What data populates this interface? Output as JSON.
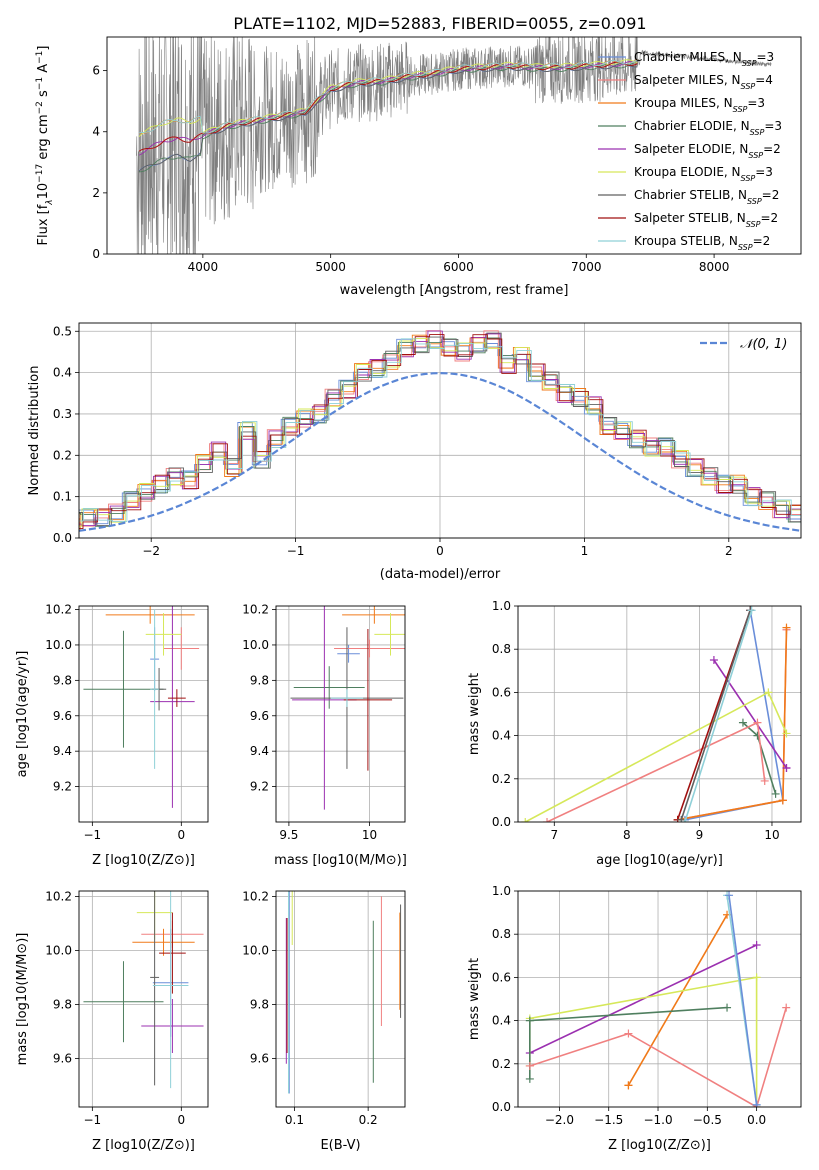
{
  "figure_title": "PLATE=1102, MJD=52883, FIBERID=0055, z=0.091",
  "colors": {
    "spectrum": "#7f7f7f",
    "models": [
      "#6a8ed9",
      "#f08080",
      "#f07a1a",
      "#4f7f5f",
      "#9b30b0",
      "#d6e85a",
      "#606060",
      "#a01010",
      "#8fd0d8"
    ],
    "normal": "#5a86d5",
    "grid": "#b0b0b0"
  },
  "chart_data": [
    {
      "id": "spectrum",
      "type": "line",
      "title": "PLATE=1102, MJD=52883, FIBERID=0055, z=0.091",
      "xlabel": "wavelength [Angstrom, rest frame]",
      "ylabel_parts": [
        "Flux [f",
        "λ",
        "10",
        "−17",
        " erg cm",
        "−2",
        " s",
        "−1",
        " A",
        "−1",
        "]"
      ],
      "xlim": [
        3250,
        8680
      ],
      "ylim": [
        0,
        7.1
      ],
      "xticks": [
        4000,
        5000,
        6000,
        7000,
        8000
      ],
      "yticks": [
        0,
        2,
        4,
        6
      ],
      "grid": false,
      "legend_position": "right",
      "series": [
        {
          "name": "Chabrier MILES",
          "nssp": "3"
        },
        {
          "name": "Salpeter MILES",
          "nssp": "4"
        },
        {
          "name": "Kroupa MILES",
          "nssp": "3"
        },
        {
          "name": "Chabrier ELODIE",
          "nssp": "3"
        },
        {
          "name": "Salpeter ELODIE",
          "nssp": "2"
        },
        {
          "name": "Kroupa ELODIE",
          "nssp": "3"
        },
        {
          "name": "Chabrier STELIB",
          "nssp": "2"
        },
        {
          "name": "Salpeter STELIB",
          "nssp": "2"
        },
        {
          "name": "Kroupa STELIB",
          "nssp": "2"
        }
      ],
      "legend_subscript": "SSP",
      "continuum": {
        "x": [
          3500,
          3600,
          3700,
          3800,
          3900,
          4000,
          4100,
          4200,
          4400,
          4600,
          4800,
          5000,
          5200,
          5400,
          5600,
          5800,
          6000,
          6200,
          6400,
          6600,
          6800,
          7000,
          7200,
          7400
        ],
        "y": [
          3.3,
          3.5,
          3.7,
          3.8,
          3.7,
          3.9,
          4.05,
          4.2,
          4.35,
          4.5,
          4.65,
          5.4,
          5.6,
          5.65,
          5.8,
          5.9,
          6.05,
          6.1,
          6.15,
          6.1,
          6.1,
          6.15,
          6.2,
          6.25
        ]
      }
    },
    {
      "id": "residuals",
      "type": "histogram",
      "xlabel": "(data-model)/error",
      "ylabel": "Normed distribution",
      "xlim": [
        -2.5,
        2.5
      ],
      "ylim": [
        0,
        0.52
      ],
      "xticks": [
        -2,
        -1,
        0,
        1,
        2
      ],
      "yticks": [
        0,
        0.1,
        0.2,
        0.3,
        0.4,
        0.5
      ],
      "grid": true,
      "legend_entry": "𝒩(0, 1)",
      "legend_position": "top-right",
      "bin_width": 0.1,
      "approx_values": [
        0.01,
        0.01,
        0.02,
        0.03,
        0.04,
        0.05,
        0.05,
        0.06,
        0.09,
        0.11,
        0.13,
        0.15,
        0.14,
        0.18,
        0.21,
        0.17,
        0.26,
        0.19,
        0.24,
        0.27,
        0.29,
        0.3,
        0.34,
        0.36,
        0.4,
        0.41,
        0.43,
        0.46,
        0.47,
        0.48,
        0.46,
        0.45,
        0.47,
        0.48,
        0.42,
        0.44,
        0.4,
        0.38,
        0.35,
        0.34,
        0.32,
        0.27,
        0.26,
        0.24,
        0.22,
        0.22,
        0.19,
        0.17,
        0.15,
        0.13,
        0.13,
        0.1,
        0.09,
        0.07,
        0.06,
        0.05,
        0.05,
        0.04,
        0.03,
        0.03
      ]
    },
    {
      "id": "age-vs-Z",
      "type": "errorbar",
      "xlabel": "Z [log10(Z/Z⊙)]",
      "ylabel": "age  [log10(age/yr)]",
      "xlim": [
        -1.15,
        0.3
      ],
      "ylim": [
        9.0,
        10.22
      ],
      "xticks": [
        -1,
        0
      ],
      "yticks": [
        9.2,
        9.4,
        9.6,
        9.8,
        10.0,
        10.2
      ],
      "grid": true,
      "points": [
        {
          "series": "Chabrier MILES",
          "x": -0.3,
          "xerr": 0.05,
          "y": 9.92,
          "yerr": 0.18
        },
        {
          "series": "Salpeter MILES",
          "x": 0.0,
          "xerr": 0.2,
          "y": 9.98,
          "yerr": 0.12
        },
        {
          "series": "Kroupa MILES",
          "x": -0.35,
          "xerr": 0.5,
          "y": 10.17,
          "yerr": 0.05
        },
        {
          "series": "Chabrier ELODIE",
          "x": -0.65,
          "xerr": 0.45,
          "y": 9.75,
          "yerr": 0.33
        },
        {
          "series": "Salpeter ELODIE",
          "x": -0.1,
          "xerr": 0.25,
          "y": 9.68,
          "yerr": 0.6
        },
        {
          "series": "Kroupa ELODIE",
          "x": -0.2,
          "xerr": 0.2,
          "y": 10.06,
          "yerr": 0.12
        },
        {
          "series": "Chabrier STELIB",
          "x": -0.25,
          "xerr": 0.08,
          "y": 9.75,
          "yerr": 0.12
        },
        {
          "series": "Salpeter STELIB",
          "x": -0.05,
          "xerr": 0.1,
          "y": 9.7,
          "yerr": 0.05
        },
        {
          "series": "Kroupa STELIB",
          "x": -0.3,
          "xerr": 0.05,
          "y": 9.75,
          "yerr": 0.45
        }
      ]
    },
    {
      "id": "age-vs-mass",
      "type": "errorbar",
      "xlabel": "mass [log10(M/M⊙)]",
      "xlim": [
        9.42,
        10.22
      ],
      "ylim": [
        9.0,
        10.22
      ],
      "xticks": [
        9.5,
        10.0
      ],
      "yticks": [
        9.2,
        9.4,
        9.6,
        9.8,
        10.0,
        10.2
      ],
      "grid": true,
      "points": [
        {
          "series": "Chabrier MILES",
          "x": 9.87,
          "xerr": 0.07,
          "y": 9.95,
          "yerr": 0.05
        },
        {
          "series": "Salpeter MILES",
          "x": 10.0,
          "xerr": 0.22,
          "y": 9.98,
          "yerr": 0.05
        },
        {
          "series": "Kroupa MILES",
          "x": 10.03,
          "xerr": 0.2,
          "y": 10.17,
          "yerr": 0.05
        },
        {
          "series": "Chabrier ELODIE",
          "x": 9.75,
          "xerr": 0.22,
          "y": 9.76,
          "yerr": 0.12
        },
        {
          "series": "Salpeter ELODIE",
          "x": 9.72,
          "xerr": 0.2,
          "y": 9.69,
          "yerr": 0.62
        },
        {
          "series": "Kroupa ELODIE",
          "x": 10.13,
          "xerr": 0.1,
          "y": 10.06,
          "yerr": 0.12
        },
        {
          "series": "Chabrier STELIB",
          "x": 9.86,
          "xerr": 0.35,
          "y": 9.7,
          "yerr": 0.4
        },
        {
          "series": "Salpeter STELIB",
          "x": 9.99,
          "xerr": 0.15,
          "y": 9.69,
          "yerr": 0.4
        },
        {
          "series": "Kroupa STELIB",
          "x": 9.86,
          "xerr": 0.1,
          "y": 9.7,
          "yerr": 0.05
        }
      ]
    },
    {
      "id": "weight-vs-age",
      "type": "line",
      "xlabel": "age  [log10(age/yr)]",
      "ylabel": "mass weight",
      "xlim": [
        6.5,
        10.4
      ],
      "ylim": [
        0,
        1.0
      ],
      "xticks": [
        7,
        8,
        9,
        10
      ],
      "yticks": [
        0.0,
        0.2,
        0.4,
        0.6,
        0.8,
        1.0
      ],
      "grid": true,
      "series": [
        {
          "name": "Chabrier MILES",
          "x": [
            8.8,
            10.15,
            9.7
          ],
          "y": [
            0.01,
            0.1,
            0.98
          ]
        },
        {
          "name": "Salpeter MILES",
          "x": [
            8.7,
            10.15,
            10.2
          ],
          "y": [
            0.01,
            0.1,
            0.89
          ]
        },
        {
          "name": "Kroupa MILES",
          "x": [
            8.7,
            10.15,
            10.2
          ],
          "y": [
            0.01,
            0.1,
            0.9
          ]
        },
        {
          "name": "Salpeter ELODIE",
          "x": [
            9.2,
            10.2,
            10.2
          ],
          "y": [
            0.75,
            0.25,
            0.25
          ]
        },
        {
          "name": "Kroupa ELODIE",
          "x": [
            6.6,
            9.95,
            10.2
          ],
          "y": [
            0.0,
            0.6,
            0.41
          ]
        },
        {
          "name": "Chabrier ELODIE",
          "x": [
            9.6,
            9.8,
            10.05
          ],
          "y": [
            0.46,
            0.4,
            0.13
          ]
        },
        {
          "name": "Salpeter MILES",
          "x": [
            6.9,
            9.8,
            9.9
          ],
          "y": [
            0.0,
            0.46,
            0.19
          ]
        },
        {
          "name": "Salpeter STELIB",
          "x": [
            8.7,
            9.7
          ],
          "y": [
            0.01,
            0.98
          ]
        },
        {
          "name": "Chabrier STELIB",
          "x": [
            8.75,
            9.7
          ],
          "y": [
            0.01,
            0.98
          ]
        },
        {
          "name": "Kroupa STELIB",
          "x": [
            8.8,
            9.72
          ],
          "y": [
            0.0,
            0.98
          ]
        }
      ]
    },
    {
      "id": "mass-vs-Z",
      "type": "errorbar",
      "xlabel": "Z [log10(Z/Z⊙)]",
      "ylabel": "mass [log10(M/M⊙)]",
      "xlim": [
        -1.15,
        0.3
      ],
      "ylim": [
        9.42,
        10.22
      ],
      "xticks": [
        -1,
        0
      ],
      "yticks": [
        9.6,
        9.8,
        10.0,
        10.2
      ],
      "grid": true,
      "points": [
        {
          "series": "Chabrier MILES",
          "x": -0.12,
          "xerr": 0.2,
          "y": 9.88,
          "yerr": 0.2
        },
        {
          "series": "Salpeter MILES",
          "x": -0.1,
          "xerr": 0.35,
          "y": 10.06,
          "yerr": 0.05
        },
        {
          "series": "Kroupa MILES",
          "x": -0.2,
          "xerr": 0.35,
          "y": 10.03,
          "yerr": 0.05
        },
        {
          "series": "Chabrier ELODIE",
          "x": -0.65,
          "xerr": 0.45,
          "y": 9.81,
          "yerr": 0.15
        },
        {
          "series": "Salpeter ELODIE",
          "x": -0.1,
          "xerr": 0.35,
          "y": 9.72,
          "yerr": 0.1
        },
        {
          "series": "Kroupa ELODIE",
          "x": -0.3,
          "xerr": 0.2,
          "y": 10.14,
          "yerr": 0.1
        },
        {
          "series": "Chabrier STELIB",
          "x": -0.3,
          "xerr": 0.05,
          "y": 9.9,
          "yerr": 0.4
        },
        {
          "series": "Salpeter STELIB",
          "x": -0.1,
          "xerr": 0.15,
          "y": 9.99,
          "yerr": 0.15
        },
        {
          "series": "Kroupa STELIB",
          "x": -0.12,
          "xerr": 0.2,
          "y": 9.87,
          "yerr": 0.38
        }
      ]
    },
    {
      "id": "mass-vs-ebv",
      "type": "errorbar",
      "xlabel": "E(B-V)",
      "xlim": [
        0.075,
        0.25
      ],
      "ylim": [
        9.42,
        10.22
      ],
      "xticks": [
        0.1,
        0.2
      ],
      "yticks": [
        9.6,
        9.8,
        10.0,
        10.2
      ],
      "grid": true,
      "points": [
        {
          "series": "Chabrier MILES",
          "x": 0.093,
          "xerr": 0,
          "y": 9.87,
          "yerr": 0.4
        },
        {
          "series": "Salpeter MILES",
          "x": 0.218,
          "xerr": 0,
          "y": 9.96,
          "yerr": 0.24
        },
        {
          "series": "Kroupa MILES",
          "x": 0.243,
          "xerr": 0,
          "y": 9.96,
          "yerr": 0.18
        },
        {
          "series": "Chabrier ELODIE",
          "x": 0.207,
          "xerr": 0,
          "y": 9.81,
          "yerr": 0.3
        },
        {
          "series": "Salpeter ELODIE",
          "x": 0.089,
          "xerr": 0,
          "y": 9.85,
          "yerr": 0.27
        },
        {
          "series": "Kroupa ELODIE",
          "x": 0.097,
          "xerr": 0,
          "y": 10.14,
          "yerr": 0.12
        },
        {
          "series": "Chabrier STELIB",
          "x": 0.244,
          "xerr": 0,
          "y": 9.96,
          "yerr": 0.21
        },
        {
          "series": "Salpeter STELIB",
          "x": 0.09,
          "xerr": 0,
          "y": 9.87,
          "yerr": 0.25
        },
        {
          "series": "Kroupa STELIB",
          "x": 0.092,
          "xerr": 0,
          "y": 9.87,
          "yerr": 0.4
        }
      ]
    },
    {
      "id": "weight-vs-Z",
      "type": "line",
      "xlabel": "Z [log10(Z/Z⊙)]",
      "ylabel": "mass weight",
      "xlim": [
        -2.42,
        0.45
      ],
      "ylim": [
        0,
        1.0
      ],
      "xticks": [
        -2.0,
        -1.5,
        -1.0,
        -0.5,
        0.0
      ],
      "xtick_labels": [
        "−2.0",
        "−1.5",
        "−1.0",
        "−0.5",
        "0.0"
      ],
      "yticks": [
        0.0,
        0.2,
        0.4,
        0.6,
        0.8,
        1.0
      ],
      "grid": true,
      "series": [
        {
          "name": "Kroupa MILES",
          "x": [
            -1.3,
            -0.3,
            -1.3
          ],
          "y": [
            0.1,
            0.89,
            0.1
          ]
        },
        {
          "name": "Salpeter ELODIE",
          "x": [
            -2.3,
            0.0
          ],
          "y": [
            0.25,
            0.75
          ]
        },
        {
          "name": "Kroupa ELODIE",
          "x": [
            -2.3,
            -2.3,
            0.0,
            0.0
          ],
          "y": [
            0.19,
            0.41,
            0.6,
            0.0
          ]
        },
        {
          "name": "Chabrier ELODIE",
          "x": [
            -2.3,
            -2.3,
            -0.3
          ],
          "y": [
            0.13,
            0.4,
            0.46
          ]
        },
        {
          "name": "Salpeter MILES",
          "x": [
            -2.3,
            -1.3,
            0.0,
            0.3
          ],
          "y": [
            0.19,
            0.34,
            0.0,
            0.46
          ]
        },
        {
          "name": "Kroupa STELIB",
          "x": [
            -0.3,
            0.0
          ],
          "y": [
            0.98,
            0.01
          ]
        },
        {
          "name": "Chabrier MILES",
          "x": [
            -0.28,
            0.0
          ],
          "y": [
            0.98,
            0.01
          ]
        }
      ]
    }
  ]
}
